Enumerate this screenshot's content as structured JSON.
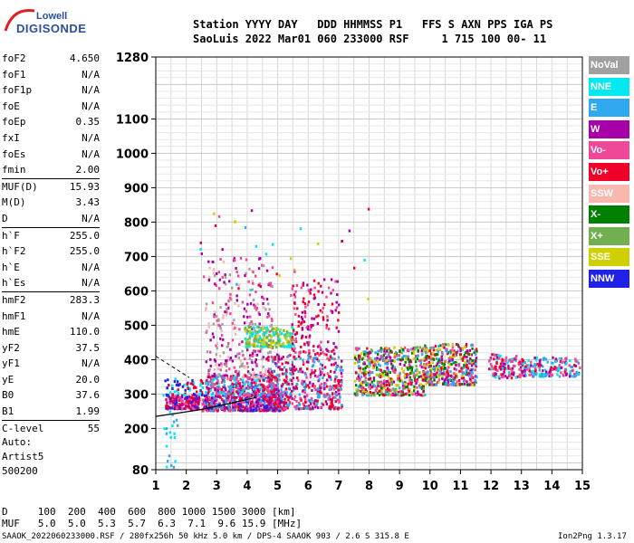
{
  "logo": {
    "line1": "Lowell",
    "line2": "DIGISONDE"
  },
  "header": {
    "line1": "Station YYYY DAY   DDD HHMMSS P1   FFS S AXN PPS IGA PS",
    "line2": "SaoLuis 2022 Mar01 060 233000 RSF     1 715 100 00- 11"
  },
  "params": [
    {
      "k": "foF2",
      "v": "4.650"
    },
    {
      "k": "foF1",
      "v": "N/A"
    },
    {
      "k": "foF1p",
      "v": "N/A"
    },
    {
      "k": "foE",
      "v": "N/A"
    },
    {
      "k": "foEp",
      "v": "0.35"
    },
    {
      "k": "fxI",
      "v": "N/A"
    },
    {
      "k": "foEs",
      "v": "N/A"
    },
    {
      "k": "fmin",
      "v": "2.00"
    },
    {
      "k": "MUF(D)",
      "v": "15.93",
      "sep": true
    },
    {
      "k": "M(D)",
      "v": "3.43"
    },
    {
      "k": "D",
      "v": "N/A"
    },
    {
      "k": "h`F",
      "v": "255.0",
      "sep": true
    },
    {
      "k": "h`F2",
      "v": "255.0"
    },
    {
      "k": "h`E",
      "v": "N/A"
    },
    {
      "k": "h`Es",
      "v": "N/A"
    },
    {
      "k": "hmF2",
      "v": "283.3",
      "sep": true
    },
    {
      "k": "hmF1",
      "v": "N/A"
    },
    {
      "k": "hmE",
      "v": "110.0"
    },
    {
      "k": "yF2",
      "v": "37.5"
    },
    {
      "k": "yF1",
      "v": "N/A"
    },
    {
      "k": "yE",
      "v": "20.0"
    },
    {
      "k": "B0",
      "v": "37.6"
    },
    {
      "k": "B1",
      "v": "1.99"
    },
    {
      "k": "C-level",
      "v": "55",
      "sep": true
    }
  ],
  "auto": {
    "l1": "Auto:",
    "l2": "Artist5",
    "l3": "500200"
  },
  "bottom": {
    "d_line": "D     100  200  400  600  800 1000 1500 3000 [km]",
    "muf_line": "MUF   5.0  5.0  5.3  5.7  6.3  7.1  9.6 15.9 [MHz]",
    "footer": "SAAOK_2022060233000.RSF / 280fx256h 50 kHz 5.0 km / DPS-4 SAAOK 903 / 2.6 S 315.8 E",
    "version": "Ion2Png 1.3.17"
  },
  "legend": [
    {
      "label": "NoVal",
      "color": "#a0a0a0"
    },
    {
      "label": "NNE",
      "color": "#00e8f0"
    },
    {
      "label": "E",
      "color": "#30a8f0"
    },
    {
      "label": "W",
      "color": "#a800a8"
    },
    {
      "label": "Vo-",
      "color": "#f04898"
    },
    {
      "label": "Vo+",
      "color": "#f00028"
    },
    {
      "label": "SSW",
      "color": "#f8b8b0"
    },
    {
      "label": "X-",
      "color": "#008000"
    },
    {
      "label": "X+",
      "color": "#70b050"
    },
    {
      "label": "SSE",
      "color": "#d0d000"
    },
    {
      "label": "NNW",
      "color": "#2020e8"
    }
  ],
  "chart_data": {
    "type": "scatter",
    "xlim": [
      1,
      15
    ],
    "ylim": [
      80,
      1280
    ],
    "x_ticks": [
      1,
      2,
      3,
      4,
      5,
      6,
      7,
      8,
      9,
      10,
      11,
      12,
      13,
      14,
      15
    ],
    "y_ticks": [
      80,
      200,
      300,
      400,
      500,
      600,
      700,
      800,
      900,
      1000,
      1100,
      1280
    ],
    "grid": true,
    "clusters": [
      {
        "x": [
          1.3,
          2.4
        ],
        "y": [
          260,
          300
        ],
        "n": 200,
        "colors": [
          10,
          5,
          4,
          3
        ]
      },
      {
        "x": [
          1.2,
          2.6
        ],
        "y": [
          300,
          350
        ],
        "n": 60,
        "colors": [
          10,
          1,
          5
        ]
      },
      {
        "x": [
          2.5,
          5.2
        ],
        "y": [
          255,
          300
        ],
        "n": 500,
        "colors": [
          5,
          4,
          3,
          10,
          2
        ]
      },
      {
        "x": [
          2.6,
          5.0
        ],
        "y": [
          300,
          360
        ],
        "n": 350,
        "colors": [
          5,
          4,
          3,
          1,
          2
        ]
      },
      {
        "x": [
          2.6,
          4.8
        ],
        "y": [
          350,
          700
        ],
        "n": 300,
        "colors": [
          3,
          6,
          0,
          4
        ]
      },
      {
        "x": [
          3.9,
          5.5
        ],
        "y": [
          440,
          500
        ],
        "n": 200,
        "colors": [
          9,
          8,
          1
        ]
      },
      {
        "x": [
          4.6,
          7.1
        ],
        "y": [
          260,
          420
        ],
        "n": 500,
        "colors": [
          5,
          4,
          3,
          2
        ]
      },
      {
        "x": [
          5.4,
          7.0
        ],
        "y": [
          420,
          640
        ],
        "n": 150,
        "colors": [
          5,
          4,
          3
        ]
      },
      {
        "x": [
          7.5,
          9.8
        ],
        "y": [
          300,
          440
        ],
        "n": 550,
        "colors": [
          5,
          4,
          3,
          9,
          8,
          7,
          2
        ]
      },
      {
        "x": [
          9.8,
          11.5
        ],
        "y": [
          330,
          450
        ],
        "n": 400,
        "colors": [
          5,
          4,
          3,
          9,
          7,
          2
        ]
      },
      {
        "x": [
          11.9,
          13.0
        ],
        "y": [
          350,
          420
        ],
        "n": 120,
        "colors": [
          5,
          4,
          3,
          1
        ]
      },
      {
        "x": [
          13.0,
          14.9
        ],
        "y": [
          355,
          410
        ],
        "n": 180,
        "colors": [
          5,
          4,
          3,
          1,
          2
        ]
      },
      {
        "x": [
          1.2,
          1.7
        ],
        "y": [
          90,
          260
        ],
        "n": 20,
        "colors": [
          1,
          2
        ]
      },
      {
        "x": [
          2.3,
          8.3
        ],
        "y": [
          580,
          850
        ],
        "n": 40,
        "colors": [
          5,
          4,
          3,
          9,
          1,
          2
        ]
      }
    ],
    "trace_x": [
      1,
      2.5,
      4.3
    ],
    "trace_y": [
      235,
      255,
      290
    ],
    "dashed_x": [
      1,
      2.1
    ],
    "dashed_y": [
      410,
      348
    ]
  }
}
